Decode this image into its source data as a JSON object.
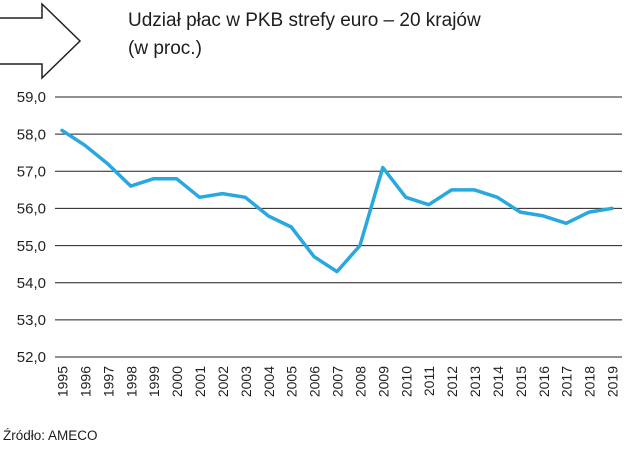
{
  "header": {
    "title_line1": "Udział płac w PKB strefy euro – 20 krajów",
    "title_line2": "(w proc.)"
  },
  "footer": {
    "source": "Źródło: AMECO"
  },
  "chart_data": {
    "type": "line",
    "title": "Udział płac w PKB strefy euro – 20 krajów (w proc.)",
    "x": [
      1995,
      1996,
      1997,
      1998,
      1999,
      2000,
      2001,
      2002,
      2003,
      2004,
      2005,
      2006,
      2007,
      2008,
      2009,
      2010,
      2011,
      2012,
      2013,
      2014,
      2015,
      2016,
      2017,
      2018,
      2019
    ],
    "values": [
      58.1,
      57.7,
      57.2,
      56.6,
      56.8,
      56.8,
      56.3,
      56.4,
      56.3,
      55.8,
      55.5,
      54.7,
      54.3,
      55.0,
      57.1,
      56.3,
      56.1,
      56.5,
      56.5,
      56.3,
      55.9,
      55.8,
      55.6,
      55.9,
      56.0
    ],
    "ylim": [
      52.0,
      59.0
    ],
    "ytick_step": 1.0,
    "ytick_labels": [
      "52,0",
      "53,0",
      "54,0",
      "55,0",
      "56,0",
      "57,0",
      "58,0",
      "59,0"
    ],
    "grid": true,
    "legend": "none",
    "line_color": "#29a8e0",
    "grid_color": "#231f20",
    "source": "Źródło: AMECO"
  }
}
